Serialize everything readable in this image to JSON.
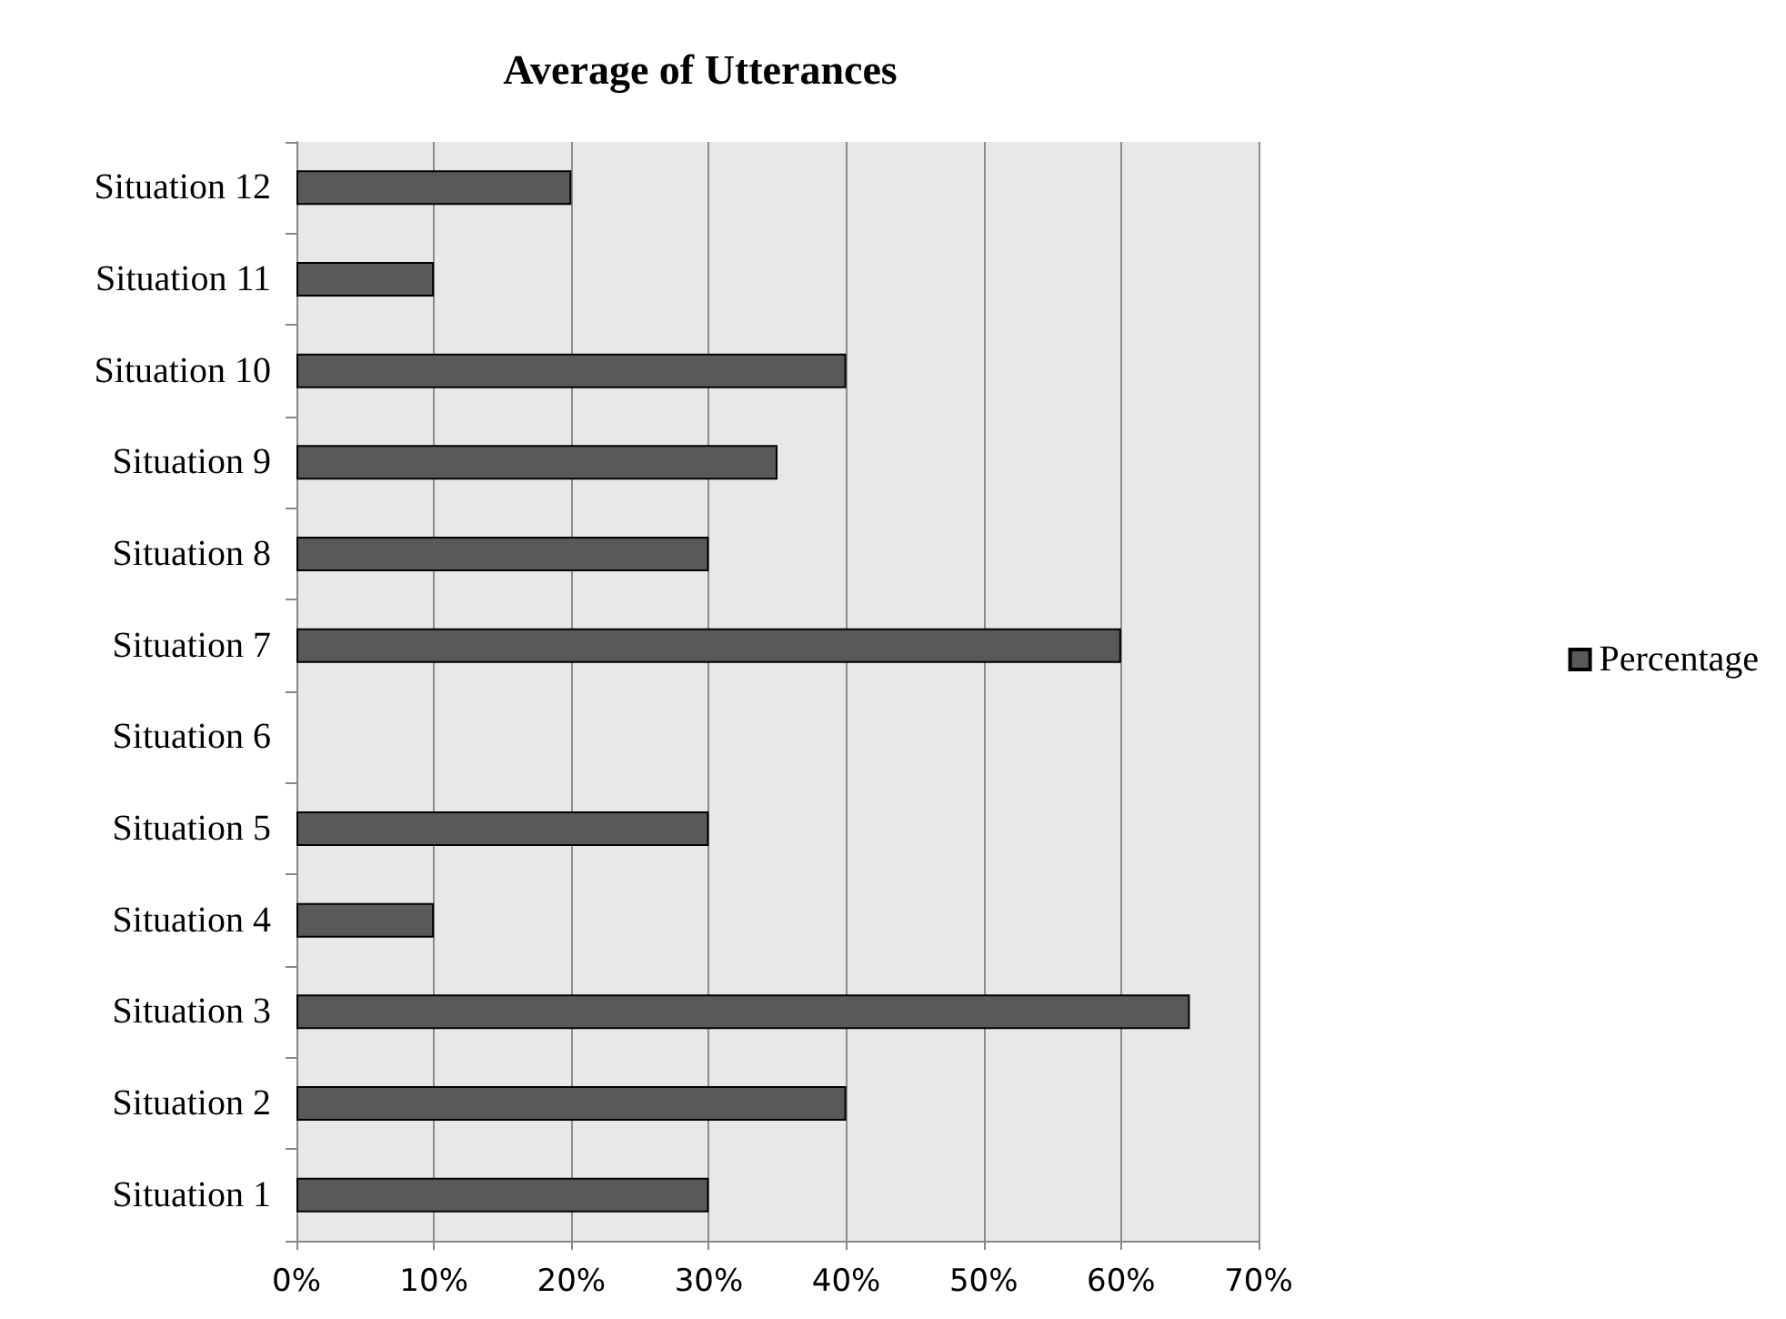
{
  "chart_data": {
    "type": "bar",
    "orientation": "horizontal",
    "title": "Average of Utterances",
    "categories": [
      "Situation 12",
      "Situation 11",
      "Situation 10",
      "Situation 9",
      "Situation 8",
      "Situation 7",
      "Situation 6",
      "Situation 5",
      "Situation 4",
      "Situation 3",
      "Situation 2",
      "Situation 1"
    ],
    "series": [
      {
        "name": "Percentage",
        "color": "#595959",
        "values": [
          20,
          10,
          40,
          35,
          30,
          60,
          0,
          30,
          10,
          65,
          40,
          30
        ]
      }
    ],
    "xlim": [
      0,
      70
    ],
    "xticks": [
      {
        "value": 0,
        "label": "0%"
      },
      {
        "value": 10,
        "label": "10%"
      },
      {
        "value": 20,
        "label": "20%"
      },
      {
        "value": 30,
        "label": "30%"
      },
      {
        "value": 40,
        "label": "40%"
      },
      {
        "value": 50,
        "label": "50%"
      },
      {
        "value": 60,
        "label": "60%"
      },
      {
        "value": 70,
        "label": "70%"
      }
    ],
    "grid": "x",
    "legend": "right"
  }
}
